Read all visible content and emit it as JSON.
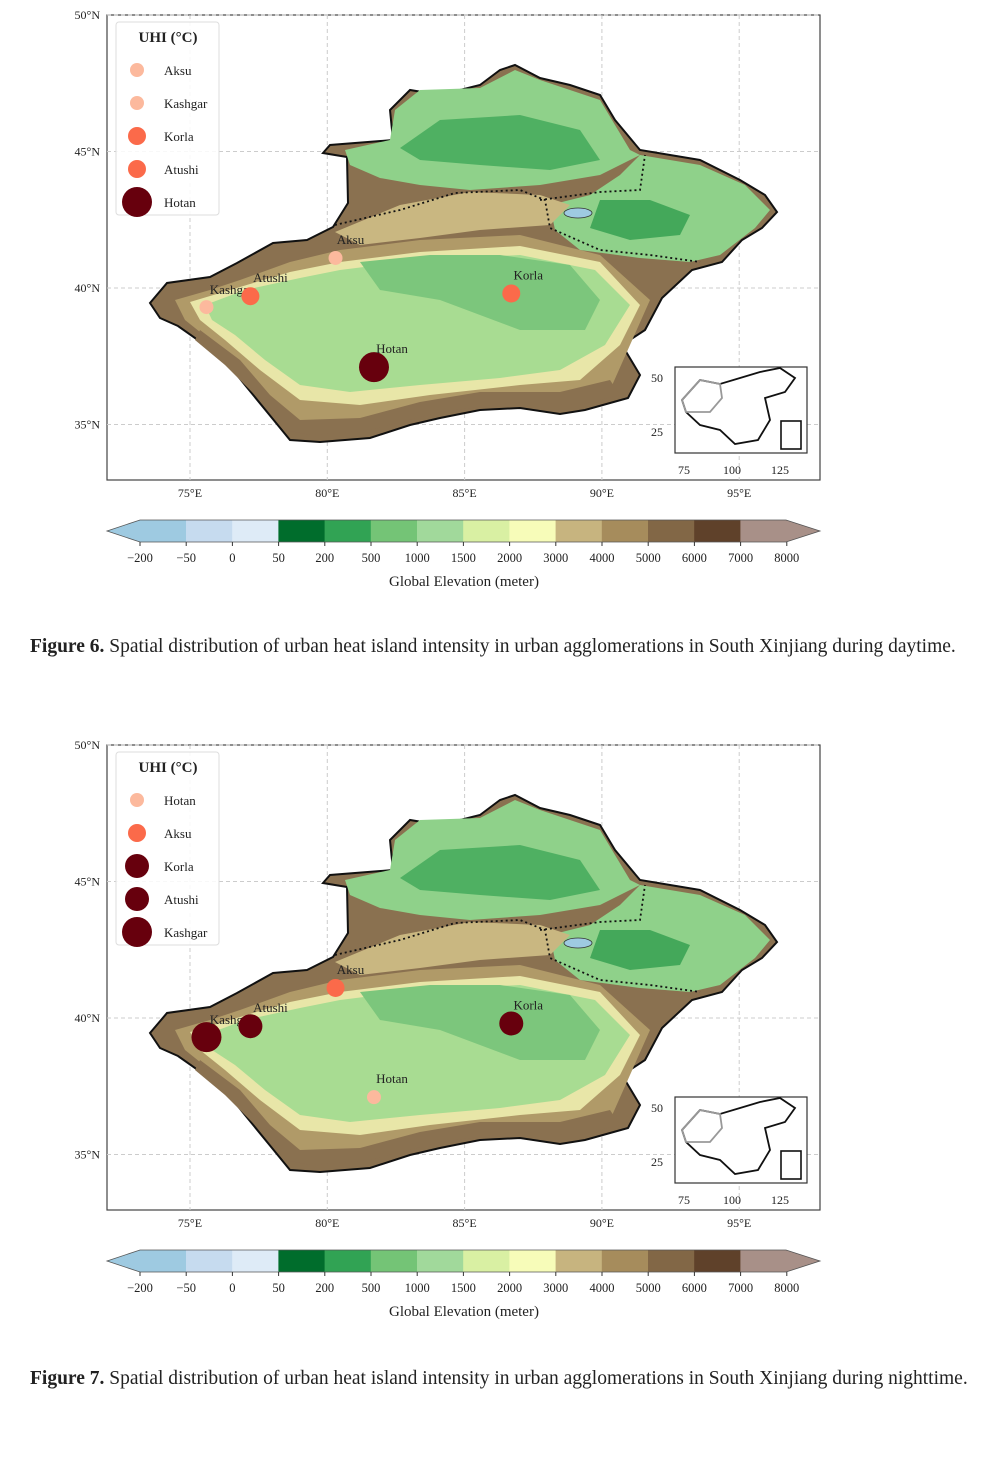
{
  "figures": [
    {
      "label": "Figure 6.",
      "caption": " Spatial distribution of urban heat island intensity in urban agglomerations in South Xinjiang during daytime.",
      "legend_title": "UHI (°C)",
      "legend": [
        {
          "name": "Aksu",
          "color": "#fcb99d",
          "size": 1
        },
        {
          "name": "Kashgar",
          "color": "#fcb99d",
          "size": 1
        },
        {
          "name": "Korla",
          "color": "#fb6a4a",
          "size": 2
        },
        {
          "name": "Atushi",
          "color": "#fb6a4a",
          "size": 2
        },
        {
          "name": "Hotan",
          "color": "#67000d",
          "size": 4
        }
      ],
      "cities": [
        {
          "name": "Aksu",
          "lon": 80.3,
          "lat": 41.1,
          "color": "#fcb99d",
          "size": 1
        },
        {
          "name": "Kashgar",
          "lon": 75.6,
          "lat": 39.3,
          "color": "#fcb99d",
          "size": 1
        },
        {
          "name": "Atushi",
          "lon": 77.2,
          "lat": 39.7,
          "color": "#fb6a4a",
          "size": 2
        },
        {
          "name": "Korla",
          "lon": 86.7,
          "lat": 39.8,
          "color": "#fb6a4a",
          "size": 2
        },
        {
          "name": "Hotan",
          "lon": 81.7,
          "lat": 37.1,
          "color": "#67000d",
          "size": 4
        }
      ]
    },
    {
      "label": "Figure 7.",
      "caption": " Spatial distribution of urban heat island intensity in urban agglomerations in South Xinjiang during nighttime.",
      "legend_title": "UHI (°C)",
      "legend": [
        {
          "name": "Hotan",
          "color": "#fcb99d",
          "size": 1
        },
        {
          "name": "Aksu",
          "color": "#fb6a4a",
          "size": 2
        },
        {
          "name": "Korla",
          "color": "#67000d",
          "size": 3
        },
        {
          "name": "Atushi",
          "color": "#67000d",
          "size": 3
        },
        {
          "name": "Kashgar",
          "color": "#67000d",
          "size": 4
        }
      ],
      "cities": [
        {
          "name": "Aksu",
          "lon": 80.3,
          "lat": 41.1,
          "color": "#fb6a4a",
          "size": 2
        },
        {
          "name": "Kashgar",
          "lon": 75.6,
          "lat": 39.3,
          "color": "#67000d",
          "size": 4
        },
        {
          "name": "Atushi",
          "lon": 77.2,
          "lat": 39.7,
          "color": "#67000d",
          "size": 3
        },
        {
          "name": "Korla",
          "lon": 86.7,
          "lat": 39.8,
          "color": "#67000d",
          "size": 3
        },
        {
          "name": "Hotan",
          "lon": 81.7,
          "lat": 37.1,
          "color": "#fcb99d",
          "size": 1
        }
      ]
    }
  ],
  "map_axes": {
    "lat_ticks": [
      {
        "v": 50,
        "label": "50°N"
      },
      {
        "v": 45,
        "label": "45°N"
      },
      {
        "v": 40,
        "label": "40°N"
      },
      {
        "v": 35,
        "label": "35°N"
      }
    ],
    "lon_ticks": [
      {
        "v": 75,
        "label": "75°E"
      },
      {
        "v": 80,
        "label": "80°E"
      },
      {
        "v": 85,
        "label": "85°E"
      },
      {
        "v": 90,
        "label": "90°E"
      },
      {
        "v": 95,
        "label": "95°E"
      }
    ],
    "lon_range": [
      72,
      98
    ],
    "lat_range": [
      33,
      50
    ]
  },
  "inset": {
    "y_ticks": [
      "50",
      "25"
    ],
    "x_ticks": [
      "75",
      "100",
      "125"
    ]
  },
  "colorbar": {
    "title": "Global Elevation (meter)",
    "ticks": [
      "−200",
      "−50",
      "0",
      "50",
      "200",
      "500",
      "1000",
      "1500",
      "2000",
      "3000",
      "4000",
      "5000",
      "6000",
      "7000",
      "8000"
    ],
    "last_tick": "8000",
    "colors": [
      "#9ecae1",
      "#c6dbef",
      "#deebf7",
      "#006d2c",
      "#31a354",
      "#74c476",
      "#a1d99b",
      "#d9f0a3",
      "#f7fcb9",
      "#c7b47f",
      "#a68c5c",
      "#826746",
      "#5f412a",
      "#a89088"
    ]
  }
}
